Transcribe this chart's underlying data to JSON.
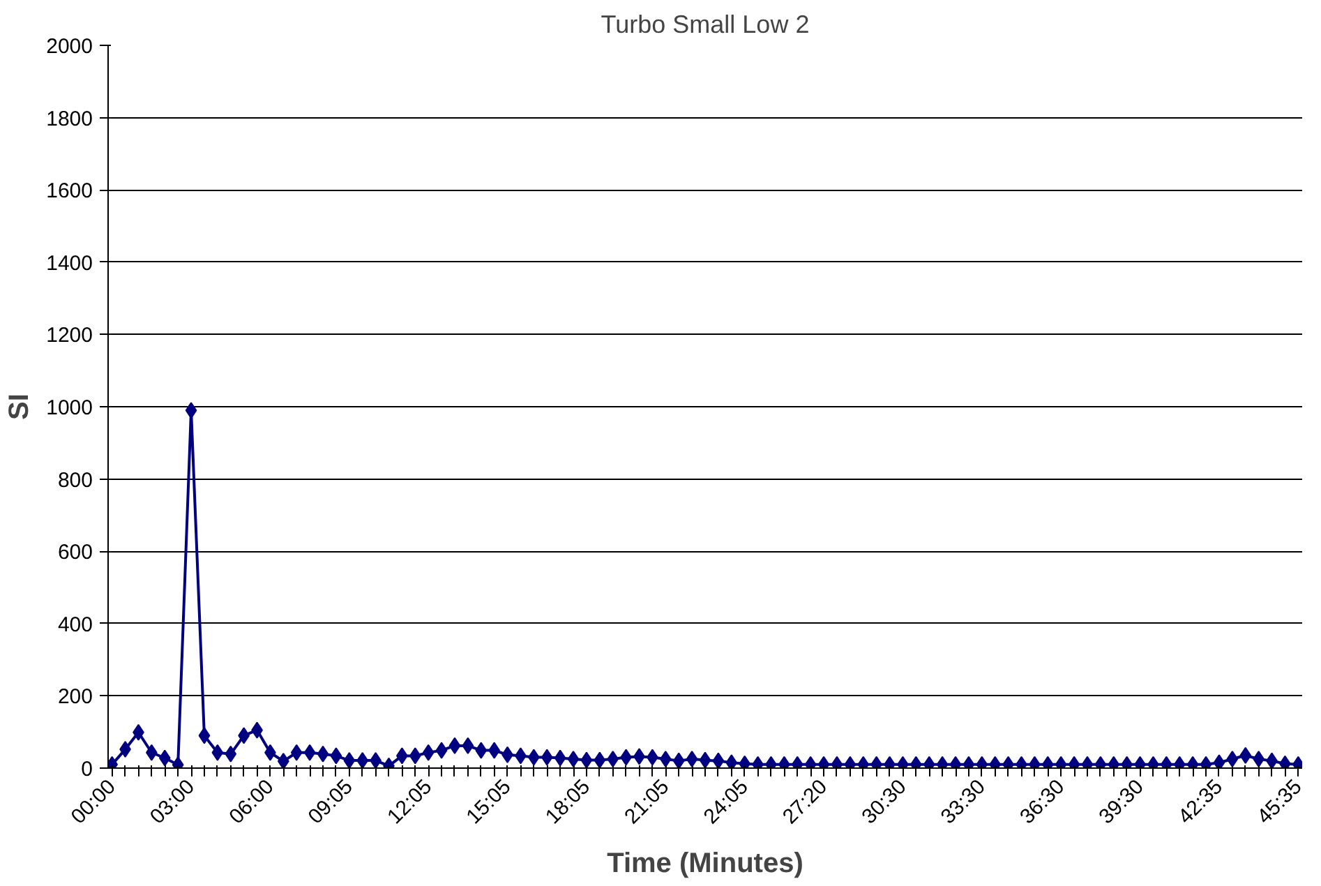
{
  "chart_data": {
    "type": "line",
    "title": "Turbo Small Low 2",
    "xlabel": "Time (Minutes)",
    "ylabel": "SI",
    "categories": [
      "00:00",
      null,
      null,
      null,
      null,
      null,
      "03:00",
      null,
      null,
      null,
      null,
      null,
      "06:00",
      null,
      null,
      null,
      null,
      null,
      "09:05",
      null,
      null,
      null,
      null,
      null,
      "12:05",
      null,
      null,
      null,
      null,
      null,
      "15:05",
      null,
      null,
      null,
      null,
      null,
      "18:05",
      null,
      null,
      null,
      null,
      null,
      "21:05",
      null,
      null,
      null,
      null,
      null,
      "24:05",
      null,
      null,
      null,
      null,
      null,
      "27:20",
      null,
      null,
      null,
      null,
      null,
      "30:30",
      null,
      null,
      null,
      null,
      null,
      "33:30",
      null,
      null,
      null,
      null,
      null,
      "36:30",
      null,
      null,
      null,
      null,
      null,
      "39:30",
      null,
      null,
      null,
      null,
      null,
      "42:35",
      null,
      null,
      null,
      null,
      null,
      "45:35"
    ],
    "series": [
      {
        "color": "#000080",
        "values": [
          10,
          52,
          99,
          43,
          28,
          9,
          990,
          90,
          43,
          39,
          90,
          105,
          43,
          19,
          43,
          43,
          39,
          34,
          21,
          21,
          21,
          6,
          34,
          34,
          43,
          49,
          62,
          62,
          49,
          49,
          37,
          34,
          30,
          30,
          28,
          25,
          22,
          22,
          25,
          30,
          32,
          30,
          25,
          20,
          25,
          22,
          20,
          15,
          12,
          10,
          10,
          10,
          10,
          10,
          10,
          10,
          10,
          10,
          10,
          10,
          10,
          10,
          10,
          10,
          10,
          10,
          10,
          10,
          10,
          10,
          10,
          10,
          10,
          10,
          10,
          10,
          10,
          10,
          10,
          10,
          10,
          10,
          10,
          10,
          15,
          25,
          35,
          25,
          20,
          12,
          10
        ]
      }
    ],
    "ylim": [
      0,
      2000
    ],
    "yticks": [
      0,
      200,
      400,
      600,
      800,
      1000,
      1200,
      1400,
      1600,
      1800,
      2000
    ],
    "grid": "y",
    "marker": "diamond",
    "line_style": "solid"
  }
}
